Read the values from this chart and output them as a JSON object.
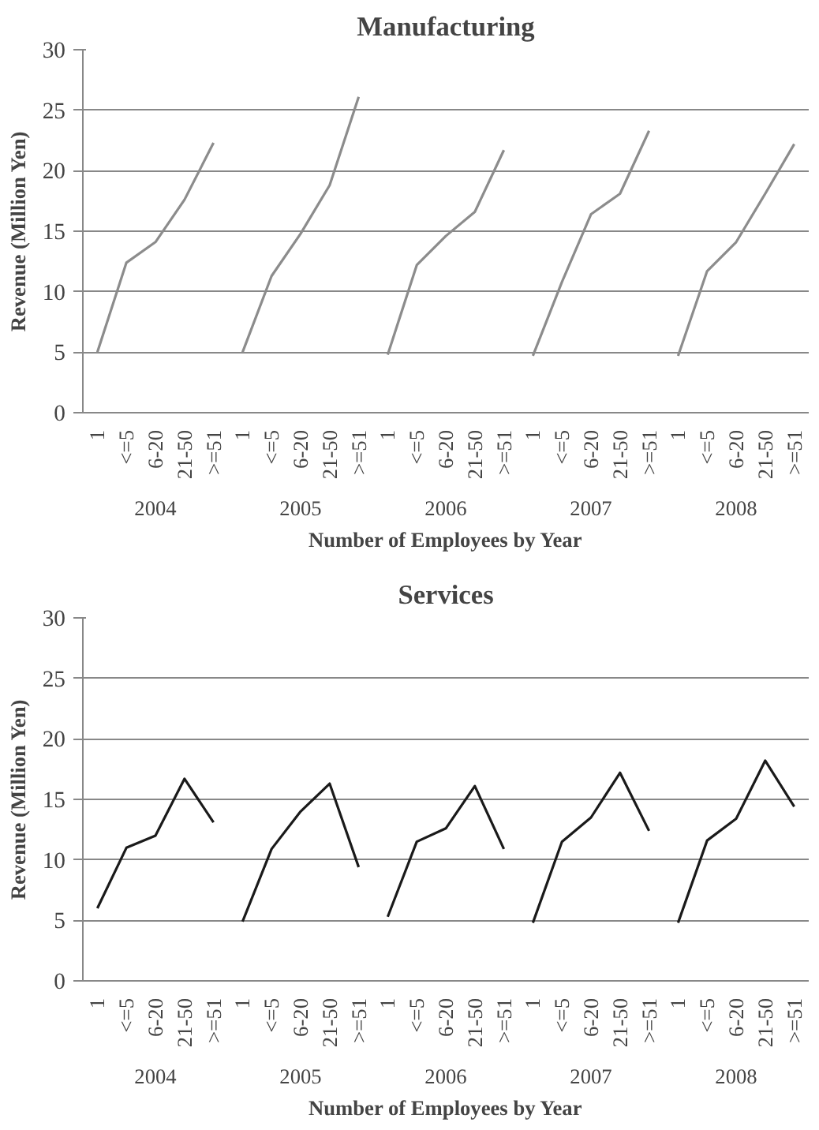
{
  "chart_data": [
    {
      "type": "line",
      "title": "Manufacturing",
      "xlabel": "Number of Employees by Year",
      "ylabel": "Revenue (Million Yen)",
      "categories": [
        "1",
        "<=5",
        "6-20",
        "21-50",
        ">=51",
        "1",
        "<=5",
        "6-20",
        "21-50",
        ">=51",
        "1",
        "<=5",
        "6-20",
        "21-50",
        ">=51",
        "1",
        "<=5",
        "6-20",
        "21-50",
        ">=51",
        "1",
        "<=5",
        "6-20",
        "21-50",
        ">=51"
      ],
      "series": [
        {
          "color": "#8c8c8c",
          "values": [
            5.0,
            12.4,
            14.1,
            17.6,
            22.3,
            5.0,
            11.3,
            14.8,
            18.8,
            26.1,
            4.8,
            12.2,
            14.6,
            16.6,
            21.7,
            4.7,
            10.8,
            16.4,
            18.1,
            23.3,
            4.7,
            11.7,
            14.1,
            18.1,
            22.2
          ]
        }
      ],
      "annotations": [
        "2004",
        "2005",
        "2006",
        "2007",
        "2008"
      ],
      "ylim": [
        0,
        30
      ],
      "yticks": [
        0,
        5,
        10,
        15,
        20,
        25,
        30
      ],
      "grid": "y",
      "marker": "none",
      "line_style": "solid"
    },
    {
      "type": "line",
      "title": "Services",
      "xlabel": "Number of Employees by Year",
      "ylabel": "Revenue (Million Yen)",
      "categories": [
        "1",
        "<=5",
        "6-20",
        "21-50",
        ">=51",
        "1",
        "<=5",
        "6-20",
        "21-50",
        ">=51",
        "1",
        "<=5",
        "6-20",
        "21-50",
        ">=51",
        "1",
        "<=5",
        "6-20",
        "21-50",
        ">=51",
        "1",
        "<=5",
        "6-20",
        "21-50",
        ">=51"
      ],
      "series": [
        {
          "color": "#1a1a1a",
          "values": [
            6.0,
            11.0,
            12.0,
            16.7,
            13.1,
            4.9,
            10.9,
            14.0,
            16.3,
            9.4,
            5.3,
            11.5,
            12.6,
            16.1,
            10.9,
            4.8,
            11.5,
            13.5,
            17.2,
            12.4,
            4.8,
            11.6,
            13.4,
            18.2,
            14.4
          ]
        }
      ],
      "annotations": [
        "2004",
        "2005",
        "2006",
        "2007",
        "2008"
      ],
      "ylim": [
        0,
        30
      ],
      "yticks": [
        0,
        5,
        10,
        15,
        20,
        25,
        30
      ],
      "grid": "y",
      "marker": "none",
      "line_style": "solid"
    }
  ]
}
